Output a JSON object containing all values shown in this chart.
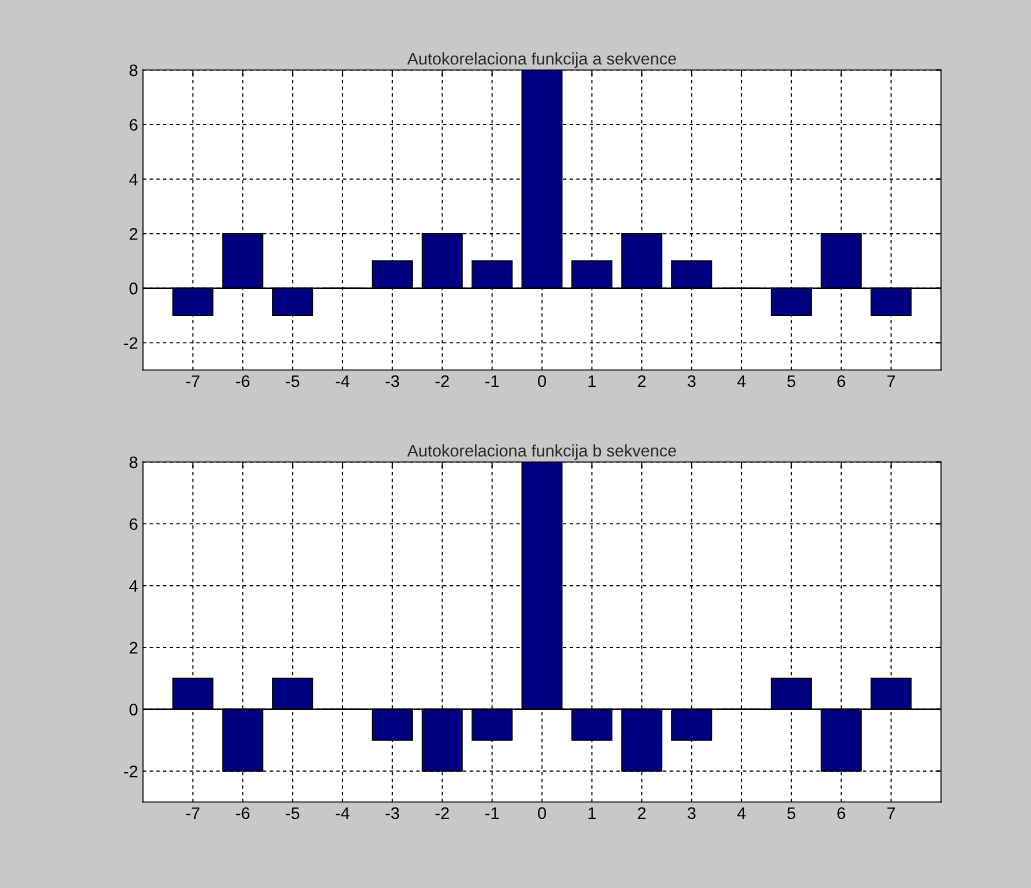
{
  "chart_data": [
    {
      "type": "bar",
      "title": "Autokorelaciona funkcija a sekvence",
      "x": [
        -7,
        -6,
        -5,
        -4,
        -3,
        -2,
        -1,
        0,
        1,
        2,
        3,
        4,
        5,
        6,
        7
      ],
      "series": [
        {
          "color": "#000080",
          "values": [
            -1,
            2,
            -1,
            0,
            1,
            2,
            1,
            8,
            1,
            2,
            1,
            0,
            -1,
            2,
            -1
          ]
        }
      ],
      "xlim": [
        -8,
        8
      ],
      "xticks": [
        -7,
        -6,
        -5,
        -4,
        -3,
        -2,
        -1,
        0,
        1,
        2,
        3,
        4,
        5,
        6,
        7
      ],
      "ylim": [
        -3,
        8
      ],
      "yticks": [
        -2,
        0,
        2,
        4,
        6,
        8
      ],
      "grid": true,
      "ref_lines": [
        {
          "axis": "y",
          "value": 0,
          "color": "#000000"
        }
      ]
    },
    {
      "type": "bar",
      "title": "Autokorelaciona funkcija b sekvence",
      "x": [
        -7,
        -6,
        -5,
        -4,
        -3,
        -2,
        -1,
        0,
        1,
        2,
        3,
        4,
        5,
        6,
        7
      ],
      "series": [
        {
          "color": "#000080",
          "values": [
            1,
            -2,
            1,
            0,
            -1,
            -2,
            -1,
            8,
            -1,
            -2,
            -1,
            0,
            1,
            -2,
            1
          ]
        }
      ],
      "xlim": [
        -8,
        8
      ],
      "xticks": [
        -7,
        -6,
        -5,
        -4,
        -3,
        -2,
        -1,
        0,
        1,
        2,
        3,
        4,
        5,
        6,
        7
      ],
      "ylim": [
        -3,
        8
      ],
      "yticks": [
        -2,
        0,
        2,
        4,
        6,
        8
      ],
      "grid": true,
      "ref_lines": [
        {
          "axis": "y",
          "value": 0,
          "color": "#000000"
        }
      ]
    }
  ]
}
